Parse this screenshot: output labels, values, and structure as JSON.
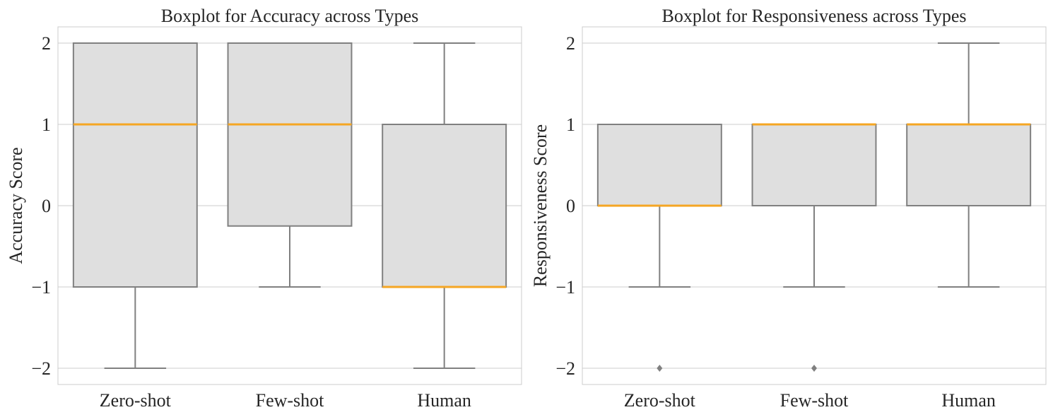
{
  "figure": {
    "colors": {
      "box_fill": "#dfdfdf",
      "box_edge": "#808080",
      "median": "#f5a623",
      "grid": "#cccccc",
      "frame": "#cccccc"
    }
  },
  "chart_data": [
    {
      "type": "box",
      "title": "Boxplot for Accuracy across Types",
      "xlabel": "",
      "ylabel": "Accuracy Score",
      "ylim": [
        -2.2,
        2.2
      ],
      "yticks": [
        2,
        1,
        0,
        -1,
        -2
      ],
      "ytick_labels": [
        "2",
        "1",
        "0",
        "−1",
        "−2"
      ],
      "grid": true,
      "categories": [
        "Zero-shot",
        "Few-shot",
        "Human"
      ],
      "boxes": [
        {
          "category": "Zero-shot",
          "whisker_low": -2,
          "q1": -1,
          "median": 1,
          "q3": 2,
          "whisker_high": 2,
          "outliers": []
        },
        {
          "category": "Few-shot",
          "whisker_low": -1,
          "q1": -0.25,
          "median": 1,
          "q3": 2,
          "whisker_high": 2,
          "outliers": []
        },
        {
          "category": "Human",
          "whisker_low": -2,
          "q1": -1,
          "median": -1,
          "q3": 1,
          "whisker_high": 2,
          "outliers": []
        }
      ]
    },
    {
      "type": "box",
      "title": "Boxplot for Responsiveness across Types",
      "xlabel": "",
      "ylabel": "Responsiveness Score",
      "ylim": [
        -2.2,
        2.2
      ],
      "yticks": [
        2,
        1,
        0,
        -1,
        -2
      ],
      "ytick_labels": [
        "2",
        "1",
        "0",
        "−1",
        "−2"
      ],
      "grid": true,
      "categories": [
        "Zero-shot",
        "Few-shot",
        "Human"
      ],
      "boxes": [
        {
          "category": "Zero-shot",
          "whisker_low": -1,
          "q1": 0,
          "median": 0,
          "q3": 1,
          "whisker_high": 1,
          "outliers": [
            -2
          ]
        },
        {
          "category": "Few-shot",
          "whisker_low": -1,
          "q1": 0,
          "median": 1,
          "q3": 1,
          "whisker_high": 1,
          "outliers": [
            -2
          ]
        },
        {
          "category": "Human",
          "whisker_low": -1,
          "q1": 0,
          "median": 1,
          "q3": 1,
          "whisker_high": 2,
          "outliers": []
        }
      ]
    }
  ]
}
